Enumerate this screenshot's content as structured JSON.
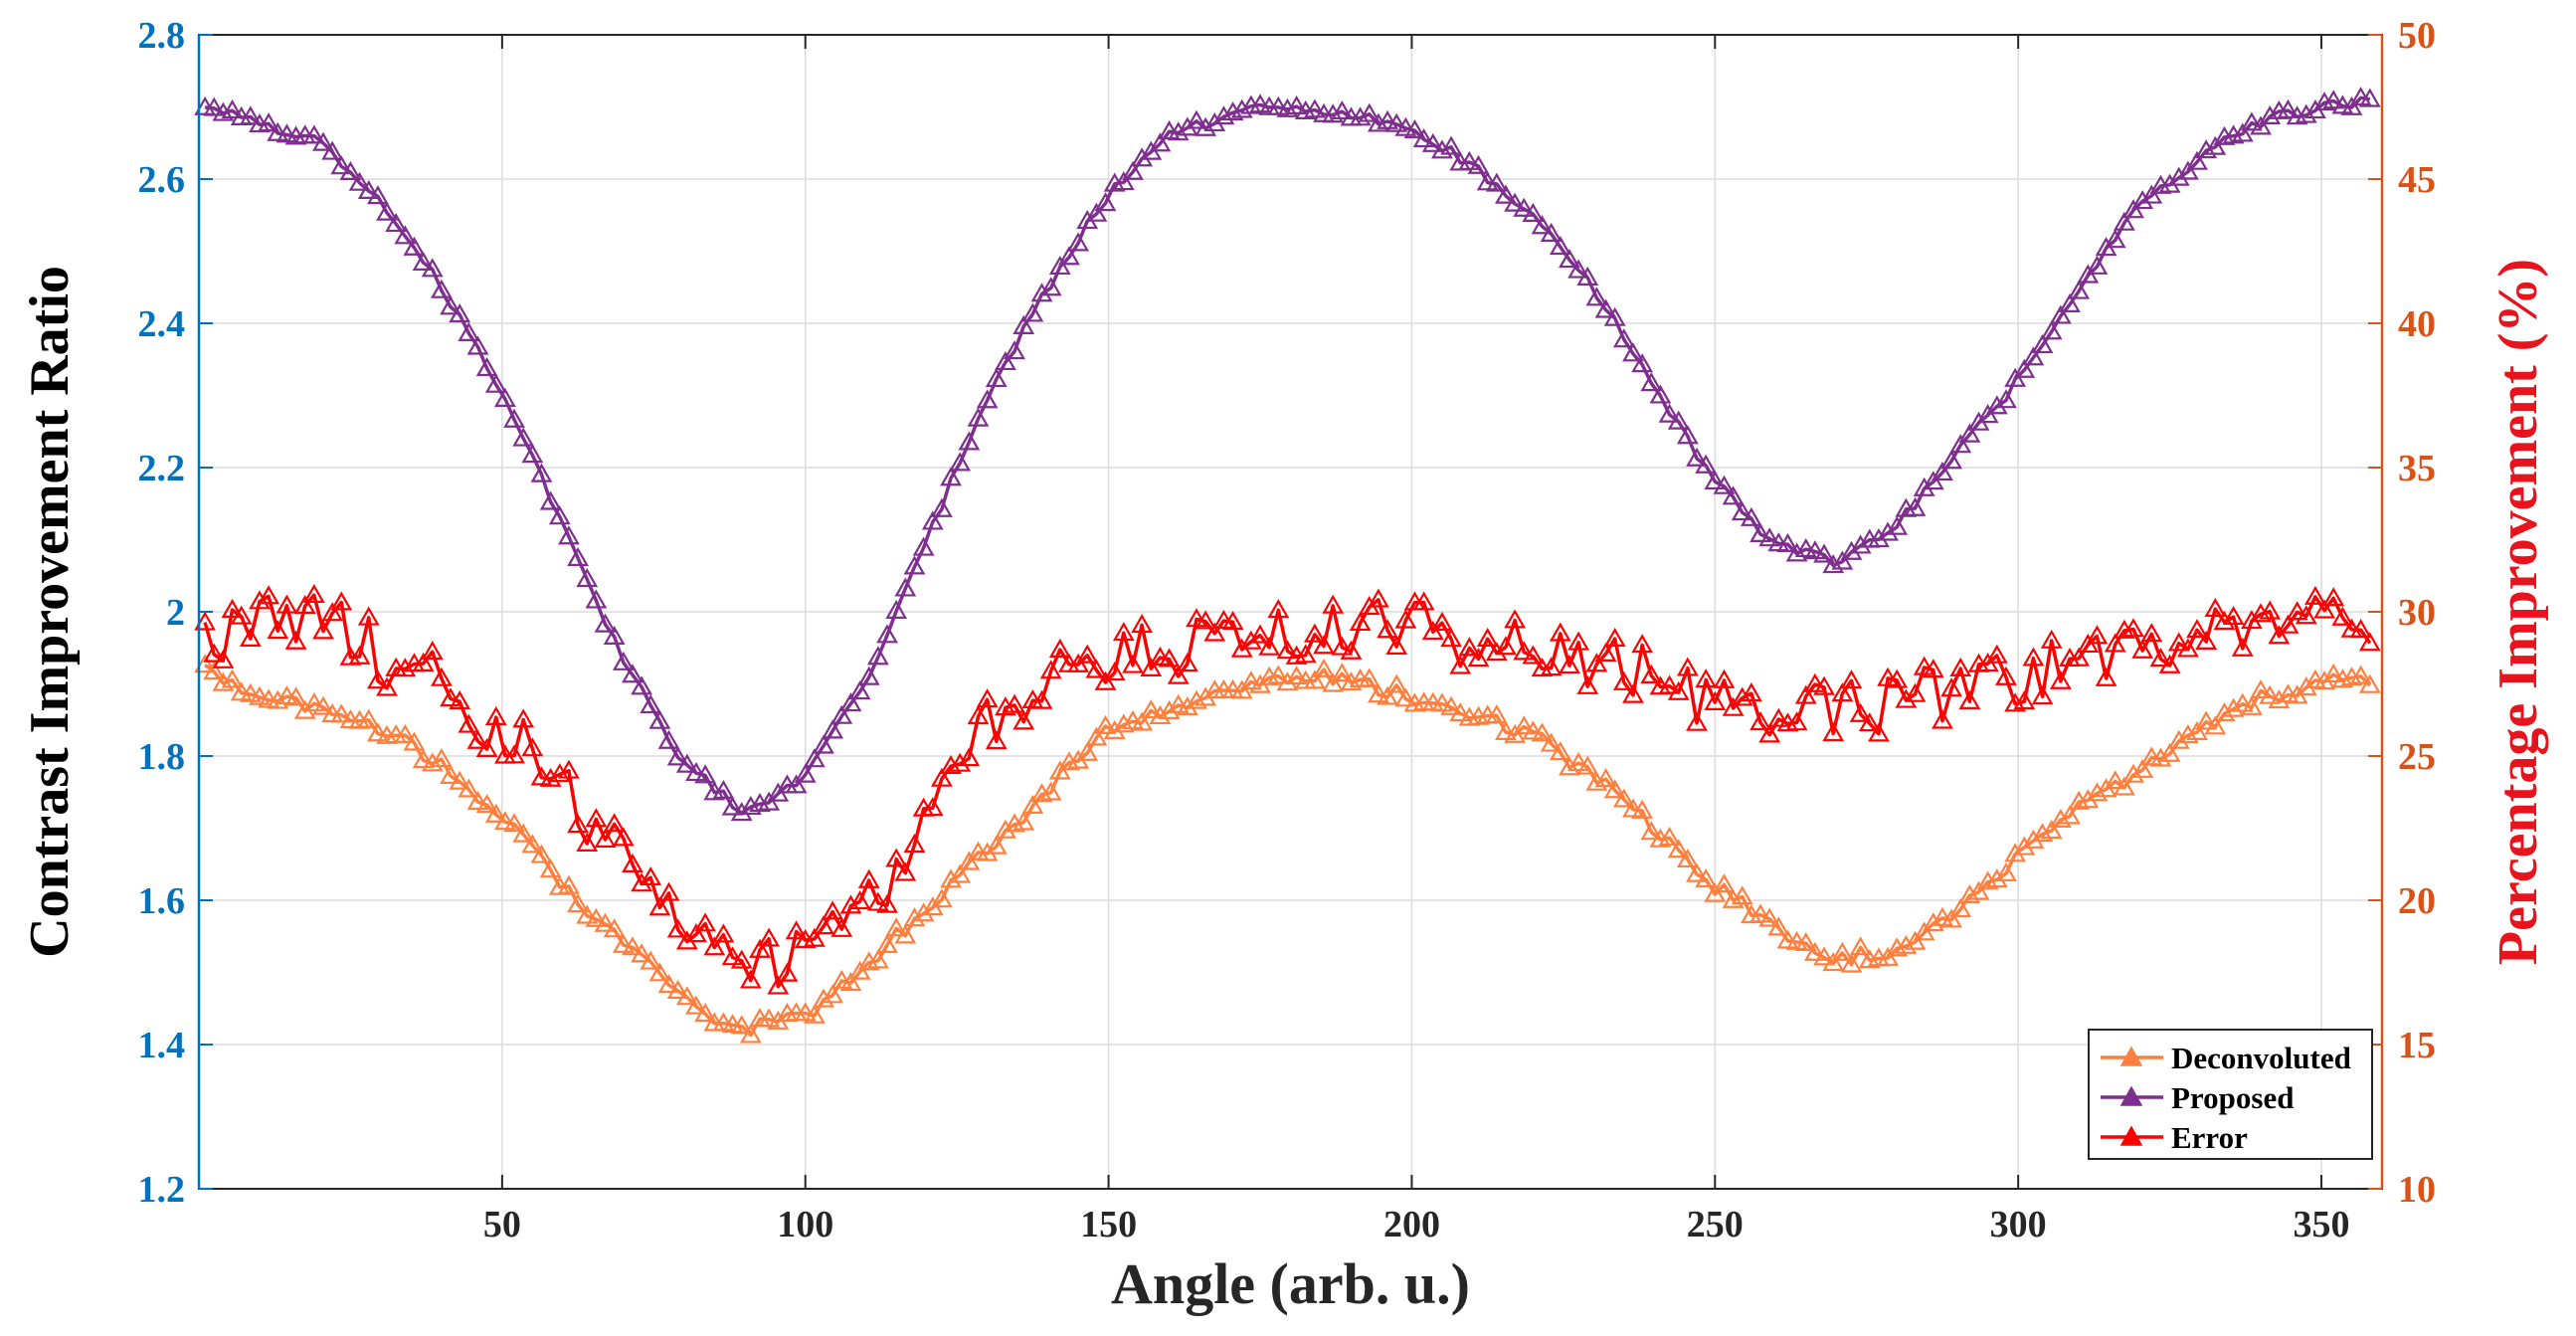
{
  "chart_data": {
    "type": "line",
    "title": "",
    "xlabel": "Angle (arb. u.)",
    "ylabel_left": "Contrast Improvement Ratio",
    "ylabel_right": "Percentage Improvement (%)",
    "xlim": [
      0,
      360
    ],
    "ylim_left": [
      1.2,
      2.8
    ],
    "ylim_right": [
      10,
      50
    ],
    "x_ticks": [
      50,
      100,
      150,
      200,
      250,
      300,
      350
    ],
    "x_tick_labels": [
      "50",
      "100",
      "150",
      "200",
      "250",
      "300",
      "350"
    ],
    "y_left_ticks": [
      1.2,
      1.4,
      1.6,
      1.8,
      2.0,
      2.2,
      2.4,
      2.6,
      2.8
    ],
    "y_left_tick_labels": [
      "1.2",
      "1.4",
      "1.6",
      "1.8",
      "2",
      "2.2",
      "2.4",
      "2.6",
      "2.8"
    ],
    "y_right_ticks": [
      10,
      15,
      20,
      25,
      30,
      35,
      40,
      45,
      50
    ],
    "y_right_tick_labels": [
      "10",
      "15",
      "20",
      "25",
      "30",
      "35",
      "40",
      "45",
      "50"
    ],
    "grid": true,
    "legend_position": "bottom-right",
    "marker": "triangle",
    "series": [
      {
        "name": "Deconvoluted",
        "axis": "left",
        "color": "#FF7F3F",
        "x": [
          0,
          10,
          20,
          30,
          40,
          50,
          60,
          70,
          80,
          90,
          100,
          110,
          120,
          130,
          140,
          150,
          160,
          170,
          180,
          190,
          200,
          210,
          220,
          230,
          240,
          250,
          260,
          270,
          280,
          290,
          300,
          310,
          320,
          330,
          340,
          350,
          360
        ],
        "values": [
          1.93,
          1.88,
          1.87,
          1.84,
          1.79,
          1.72,
          1.62,
          1.54,
          1.46,
          1.42,
          1.44,
          1.51,
          1.59,
          1.67,
          1.75,
          1.84,
          1.87,
          1.89,
          1.91,
          1.91,
          1.88,
          1.86,
          1.83,
          1.77,
          1.7,
          1.62,
          1.56,
          1.52,
          1.53,
          1.58,
          1.66,
          1.73,
          1.78,
          1.84,
          1.88,
          1.9,
          1.91
        ]
      },
      {
        "name": "Proposed",
        "axis": "left",
        "color": "#7E2F8E",
        "x": [
          0,
          10,
          20,
          30,
          40,
          50,
          60,
          70,
          80,
          90,
          100,
          110,
          120,
          130,
          140,
          150,
          160,
          170,
          180,
          190,
          200,
          210,
          220,
          230,
          240,
          250,
          260,
          270,
          280,
          290,
          300,
          310,
          320,
          330,
          340,
          350,
          360
        ],
        "values": [
          2.7,
          2.68,
          2.65,
          2.57,
          2.45,
          2.3,
          2.12,
          1.93,
          1.79,
          1.72,
          1.77,
          1.9,
          2.1,
          2.3,
          2.45,
          2.58,
          2.66,
          2.69,
          2.7,
          2.69,
          2.67,
          2.62,
          2.55,
          2.45,
          2.31,
          2.18,
          2.09,
          2.07,
          2.12,
          2.22,
          2.32,
          2.45,
          2.56,
          2.63,
          2.68,
          2.7,
          2.71
        ]
      },
      {
        "name": "Error",
        "axis": "right",
        "color": "#FF0000",
        "x": [
          0,
          10,
          20,
          30,
          40,
          50,
          60,
          70,
          80,
          90,
          100,
          110,
          120,
          130,
          140,
          150,
          160,
          170,
          180,
          190,
          200,
          210,
          220,
          230,
          240,
          250,
          260,
          270,
          280,
          290,
          300,
          310,
          320,
          330,
          340,
          350,
          360
        ],
        "values": [
          29.0,
          29.5,
          29.8,
          28.5,
          27.5,
          25.8,
          24.0,
          21.5,
          19.0,
          17.5,
          18.0,
          19.5,
          23.0,
          26.0,
          27.5,
          28.3,
          28.8,
          29.2,
          29.5,
          29.6,
          29.4,
          28.9,
          28.5,
          28.3,
          27.8,
          27.0,
          26.3,
          26.5,
          26.8,
          27.2,
          27.6,
          28.2,
          28.7,
          29.0,
          29.2,
          29.5,
          30.0
        ]
      }
    ]
  }
}
